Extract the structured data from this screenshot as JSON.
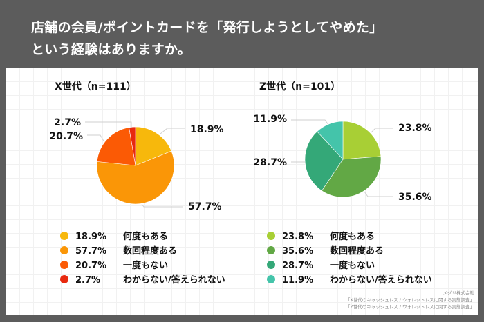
{
  "header": {
    "title_line1": "店舗の会員/ポイントカードを「発行しようとしてやめた」",
    "title_line2": "という経験はありますか。"
  },
  "chart_data": [
    {
      "type": "pie",
      "title": "X世代（n=111）",
      "categories": [
        "何度もある",
        "数回程度ある",
        "一度もない",
        "わからない/答えられない"
      ],
      "values": [
        18.9,
        57.7,
        20.7,
        2.7
      ],
      "labels": [
        "18.9%",
        "57.7%",
        "20.7%",
        "2.7%"
      ],
      "colors": [
        "#f7b80c",
        "#fa9607",
        "#fb5a05",
        "#e8290f"
      ],
      "start": "12 o'clock, clockwise",
      "legend": "bottom"
    },
    {
      "type": "pie",
      "title": "Z世代（n=101）",
      "categories": [
        "何度もある",
        "数回程度ある",
        "一度もない",
        "わからない/答えられない"
      ],
      "values": [
        23.8,
        35.6,
        28.7,
        11.9
      ],
      "labels": [
        "23.8%",
        "35.6%",
        "28.7%",
        "11.9%"
      ],
      "colors": [
        "#a8cf35",
        "#62a845",
        "#34a878",
        "#44c4aa"
      ],
      "start": "12 o'clock, clockwise",
      "legend": "bottom"
    }
  ],
  "source": {
    "company": "メグリ株式会社",
    "line1": "「X世代のキャッシュレス / ウォレットレスに関する実態調査」",
    "line2": "「Z世代のキャッシュレス / ウォレットレスに関する実態調査」"
  }
}
